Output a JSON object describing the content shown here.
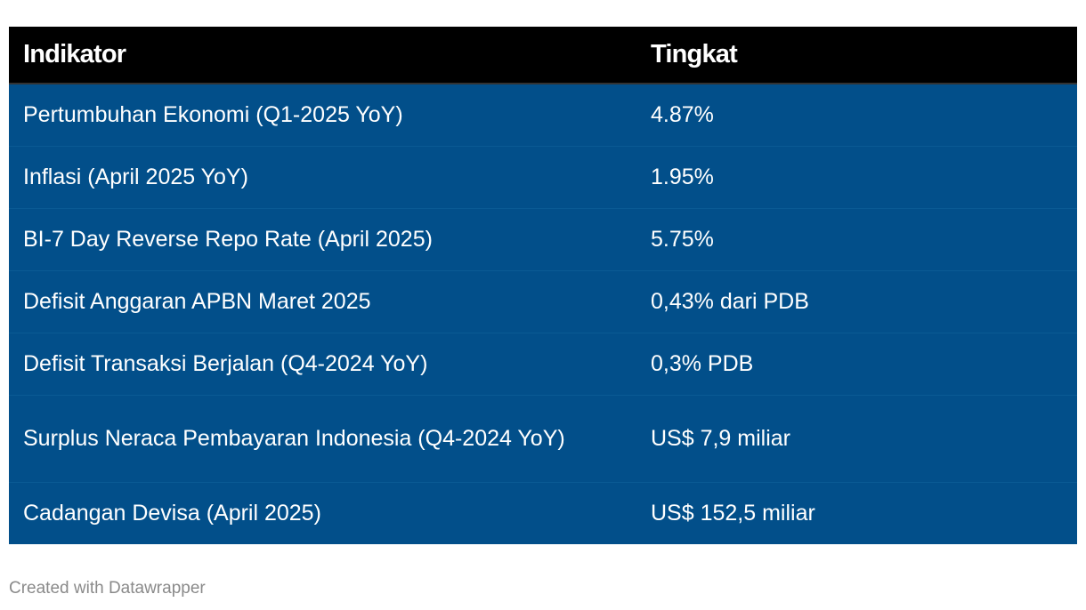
{
  "chart_data": {
    "type": "table",
    "columns": [
      "Indikator",
      "Tingkat"
    ],
    "rows": [
      {
        "indikator": "Pertumbuhan Ekonomi (Q1-2025 YoY)",
        "tingkat": "4.87%"
      },
      {
        "indikator": "Inflasi (April 2025 YoY)",
        "tingkat": "1.95%"
      },
      {
        "indikator": "BI-7 Day Reverse Repo Rate (April 2025)",
        "tingkat": "5.75%"
      },
      {
        "indikator": "Defisit Anggaran APBN Maret 2025",
        "tingkat": "0,43% dari PDB"
      },
      {
        "indikator": "Defisit Transaksi Berjalan (Q4-2024 YoY)",
        "tingkat": "0,3% PDB"
      },
      {
        "indikator": "Surplus Neraca Pembayaran Indonesia (Q4-2024 YoY)",
        "tingkat": "US$ 7,9 miliar"
      },
      {
        "indikator": "Cadangan Devisa (April 2025)",
        "tingkat": "US$ 152,5 miliar"
      }
    ]
  },
  "footer": {
    "credit": "Created with Datawrapper"
  },
  "colors": {
    "header_bg": "#000000",
    "row_bg": "#024f8a",
    "text": "#ffffff",
    "footer_text": "#8a8a8a"
  }
}
